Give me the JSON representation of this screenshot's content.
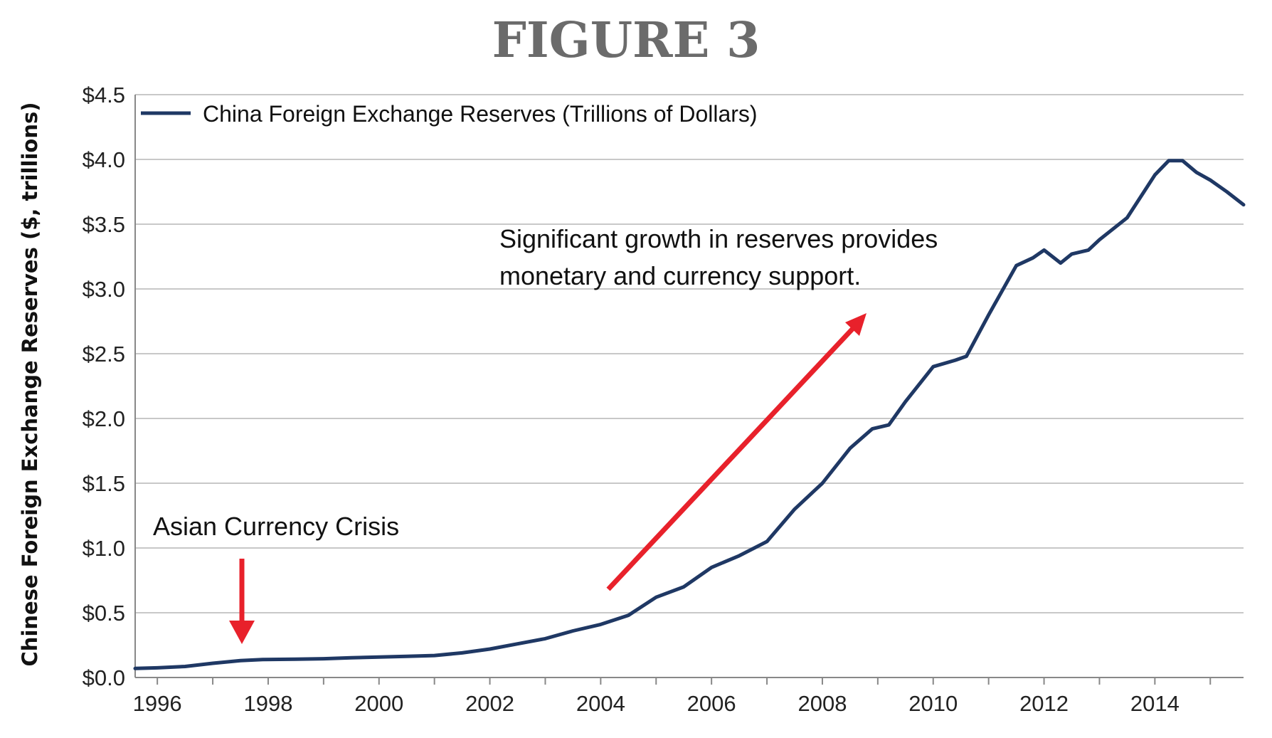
{
  "figure_title": "FIGURE 3",
  "chart_data": {
    "type": "line",
    "title": "",
    "ylabel": "Chinese Foreign Exchange Reserves ($, trillions)",
    "xlabel": "",
    "xlim": [
      1995.6,
      2015.6
    ],
    "ylim": [
      0,
      4.5
    ],
    "grid": "horizontal",
    "legend_position": "top-left",
    "y_ticks": [
      {
        "value": 0.0,
        "label": "$0.0"
      },
      {
        "value": 0.5,
        "label": "$0.5"
      },
      {
        "value": 1.0,
        "label": "$1.0"
      },
      {
        "value": 1.5,
        "label": "$1.5"
      },
      {
        "value": 2.0,
        "label": "$2.0"
      },
      {
        "value": 2.5,
        "label": "$2.5"
      },
      {
        "value": 3.0,
        "label": "$3.0"
      },
      {
        "value": 3.5,
        "label": "$3.5"
      },
      {
        "value": 4.0,
        "label": "$4.0"
      },
      {
        "value": 4.5,
        "label": "$4.5"
      }
    ],
    "x_ticks": [
      {
        "value": 1996,
        "label": "1996"
      },
      {
        "value": 1998,
        "label": "1998"
      },
      {
        "value": 2000,
        "label": "2000"
      },
      {
        "value": 2002,
        "label": "2002"
      },
      {
        "value": 2004,
        "label": "2004"
      },
      {
        "value": 2006,
        "label": "2006"
      },
      {
        "value": 2008,
        "label": "2008"
      },
      {
        "value": 2010,
        "label": "2010"
      },
      {
        "value": 2012,
        "label": "2012"
      },
      {
        "value": 2014,
        "label": "2014"
      }
    ],
    "series": [
      {
        "name": "China Foreign Exchange Reserves (Trillions of Dollars)",
        "color": "#1f3864",
        "x": [
          1995.6,
          1996.0,
          1996.5,
          1997.0,
          1997.5,
          1997.9,
          1998.5,
          1999.0,
          1999.5,
          2000.0,
          2000.5,
          2001.0,
          2001.5,
          2002.0,
          2002.5,
          2003.0,
          2003.5,
          2004.0,
          2004.5,
          2005.0,
          2005.5,
          2006.0,
          2006.5,
          2007.0,
          2007.5,
          2008.0,
          2008.5,
          2008.9,
          2009.2,
          2009.5,
          2010.0,
          2010.4,
          2010.6,
          2011.0,
          2011.5,
          2011.8,
          2012.0,
          2012.3,
          2012.5,
          2012.8,
          2013.0,
          2013.5,
          2014.0,
          2014.25,
          2014.5,
          2014.75,
          2015.0,
          2015.3,
          2015.6
        ],
        "y": [
          0.07,
          0.075,
          0.085,
          0.11,
          0.13,
          0.139,
          0.142,
          0.145,
          0.152,
          0.158,
          0.163,
          0.17,
          0.19,
          0.22,
          0.26,
          0.3,
          0.36,
          0.41,
          0.48,
          0.62,
          0.7,
          0.85,
          0.94,
          1.05,
          1.3,
          1.5,
          1.77,
          1.92,
          1.95,
          2.13,
          2.4,
          2.45,
          2.48,
          2.8,
          3.18,
          3.24,
          3.3,
          3.2,
          3.27,
          3.3,
          3.38,
          3.55,
          3.88,
          3.99,
          3.99,
          3.9,
          3.84,
          3.75,
          3.65
        ]
      }
    ],
    "annotations": [
      {
        "text": "Asian Currency Crisis"
      },
      {
        "text": "Significant growth in reserves provides",
        "text2": "monetary and currency support."
      }
    ]
  }
}
